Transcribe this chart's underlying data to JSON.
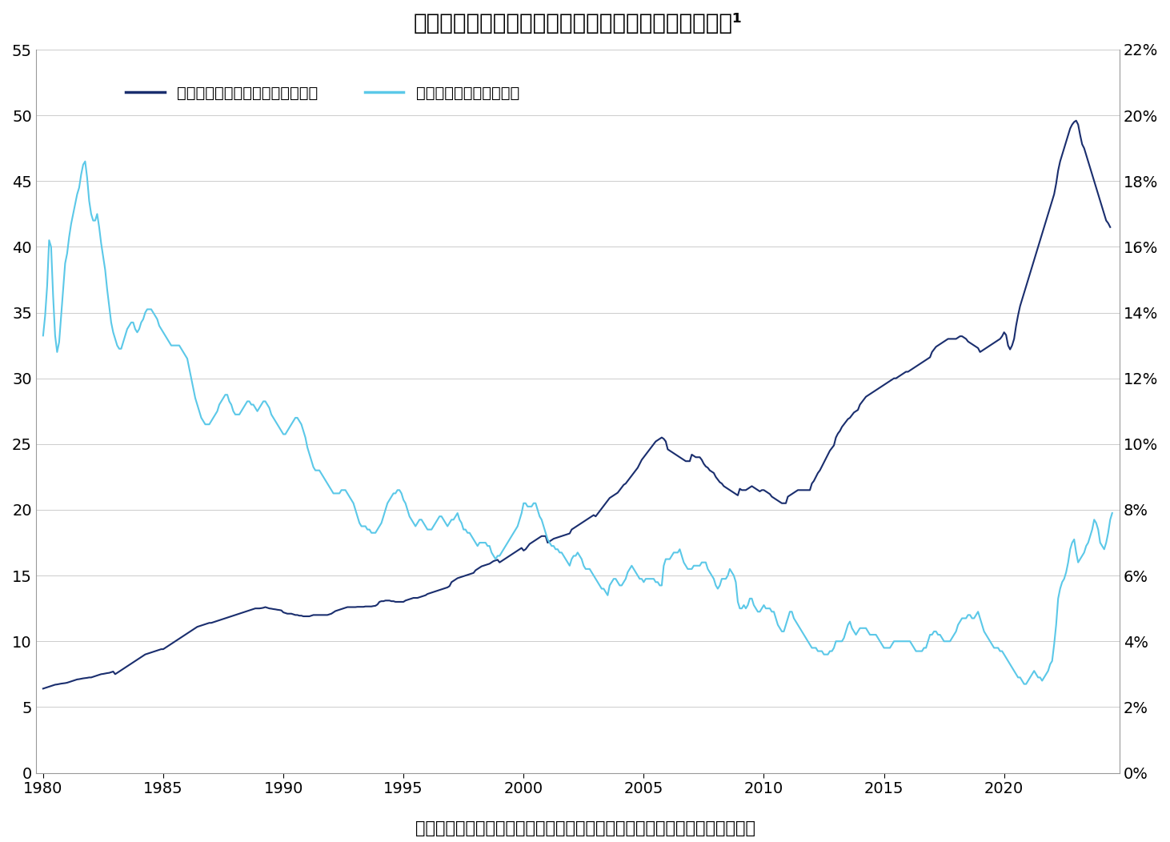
{
  "title": "図表１：米新築住宅価格（中央値）と住宅ローン金利¹",
  "legend_house": "新築住宅価格（中央値：万ドル）",
  "legend_rate": "住宅ローン金利（右軸）",
  "source_text": "（出所）米商務省、フレディマックをもとにニッセイ基礎研究所が加工作成",
  "house_color": "#1a2e6e",
  "rate_color": "#5bc8e8",
  "left_ylim": [
    0,
    55
  ],
  "right_ylim": [
    0,
    0.22
  ],
  "left_yticks": [
    0,
    5,
    10,
    15,
    20,
    25,
    30,
    35,
    40,
    45,
    50,
    55
  ],
  "right_yticks": [
    0.0,
    0.02,
    0.04,
    0.06,
    0.08,
    0.1,
    0.12,
    0.14,
    0.16,
    0.18,
    0.2,
    0.22
  ],
  "right_yticklabels": [
    "0%",
    "2%",
    "4%",
    "6%",
    "8%",
    "10%",
    "12%",
    "14%",
    "16%",
    "18%",
    "20%",
    "22%"
  ],
  "xlim_start": 1980,
  "xlim_end": 2024.8,
  "xticks": [
    1980,
    1985,
    1990,
    1995,
    2000,
    2005,
    2010,
    2015,
    2020
  ],
  "background_color": "#ffffff",
  "grid_color": "#cccccc",
  "title_fontsize": 20,
  "tick_fontsize": 14,
  "source_fontsize": 15,
  "legend_fontsize": 14
}
